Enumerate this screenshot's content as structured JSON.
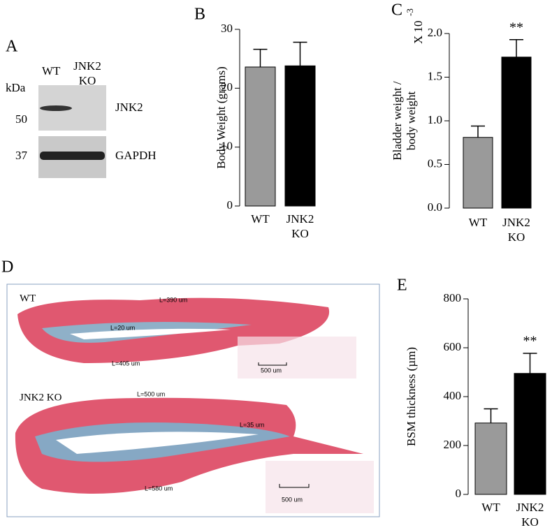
{
  "panel_labels": [
    "A",
    "B",
    "C",
    "D",
    "E"
  ],
  "blot": {
    "lane_labels": [
      "WT",
      "JNK2 KO"
    ],
    "unit": "kDa",
    "bands": [
      {
        "marker": "50",
        "name": "JNK2"
      },
      {
        "marker": "37",
        "name": "GAPDH"
      }
    ]
  },
  "histology": {
    "sections": [
      {
        "label": "WT",
        "measurements": [
          "L=390 um",
          "L=20 um",
          "L=405 um"
        ],
        "scale_bar": "500 um"
      },
      {
        "label": "JNK2 KO",
        "measurements": [
          "L=500 um",
          "L=35 um",
          "L=580 um"
        ],
        "scale_bar": "500 um"
      }
    ]
  },
  "chart_data": [
    {
      "type": "bar",
      "ylabel": [
        "Body Weight (grams)"
      ],
      "categories": [
        "WT",
        "JNK2 KO"
      ],
      "values": [
        23.6,
        23.8
      ],
      "errors": [
        3.0,
        4.0
      ],
      "colors": [
        "#9a9a9a",
        "#000000"
      ],
      "annotations": [
        null,
        null
      ],
      "ylim": [
        0,
        30
      ],
      "yticks": [
        0,
        10,
        20,
        30
      ]
    },
    {
      "type": "bar",
      "ylabel": [
        "Bladder weight /",
        "body weight"
      ],
      "ylabel_multiplier": "X 10",
      "ylabel_exponent": "-3",
      "categories": [
        "WT",
        "JNK2 KO"
      ],
      "values": [
        0.81,
        1.73
      ],
      "errors": [
        0.13,
        0.2
      ],
      "colors": [
        "#9a9a9a",
        "#000000"
      ],
      "annotations": [
        null,
        "**"
      ],
      "ylim": [
        0,
        2
      ],
      "yticks": [
        {
          "value": 0,
          "label": "0.0"
        },
        {
          "value": 0.5,
          "label": "0.5"
        },
        {
          "value": 1,
          "label": "1.0"
        },
        {
          "value": 1.5,
          "label": "1.5"
        },
        {
          "value": 2,
          "label": "2.0"
        }
      ]
    },
    {
      "type": "bar",
      "ylabel": [
        "BSM thickness  (µm)"
      ],
      "categories": [
        "WT",
        "JNK2 KO"
      ],
      "values": [
        292,
        495
      ],
      "errors": [
        58,
        82
      ],
      "colors": [
        "#9a9a9a",
        "#000000"
      ],
      "annotations": [
        null,
        "**"
      ],
      "ylim": [
        0,
        800
      ],
      "yticks": [
        0,
        200,
        400,
        600,
        800
      ]
    }
  ]
}
